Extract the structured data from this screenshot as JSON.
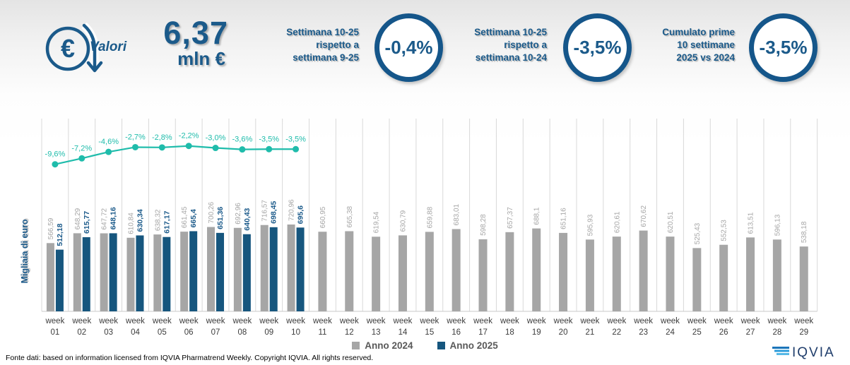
{
  "header": {
    "icon_label": "Valori",
    "total_value": "6,37",
    "total_unit": "mln €",
    "accent_color": "#1b5a8a",
    "kpis": [
      {
        "label": "Settimana 10-25\nrispetto a\nsettimana 9-25",
        "value": "-0,4%"
      },
      {
        "label": "Settimana 10-25\nrispetto a\nsettimana 10-24",
        "value": "-3,5%"
      },
      {
        "label": "Cumulato prime\n10 settimane\n2025 vs 2024",
        "value": "-3,5%"
      }
    ]
  },
  "chart_data": {
    "type": "bar",
    "title": "",
    "ylabel": "Migliaia di euro",
    "ylim": [
      0,
      1600
    ],
    "grid": "vertical-category-separators",
    "legend_position": "bottom-center",
    "category_prefix": "week",
    "categories": [
      "01",
      "02",
      "03",
      "04",
      "05",
      "06",
      "07",
      "08",
      "09",
      "10",
      "11",
      "12",
      "13",
      "14",
      "15",
      "16",
      "17",
      "18",
      "19",
      "20",
      "21",
      "22",
      "23",
      "24",
      "25",
      "26",
      "27",
      "28",
      "29"
    ],
    "series": [
      {
        "name": "Anno 2024",
        "color": "#a6a6a6",
        "label_color": "#a6a6a6",
        "values": [
          566.59,
          648.29,
          647.72,
          610.84,
          638.32,
          661.45,
          700.26,
          692.96,
          716.57,
          720.96,
          660.95,
          665.38,
          619.54,
          630.79,
          659.88,
          683.01,
          598.28,
          657.37,
          688.1,
          651.16,
          595.93,
          620.61,
          670.62,
          620.51,
          525.43,
          552.53,
          613.51,
          596.13,
          538.18
        ],
        "labels": [
          "566,59",
          "648,29",
          "647,72",
          "610,84",
          "638,32",
          "661,45",
          "700,26",
          "692,96",
          "716,57",
          "720,96",
          "660,95",
          "665,38",
          "619,54",
          "630,79",
          "659,88",
          "683,01",
          "598,28",
          "657,37",
          "688,1",
          "651,16",
          "595,93",
          "620,61",
          "670,62",
          "620,51",
          "525,43",
          "552,53",
          "613,51",
          "596,13",
          "538,18"
        ]
      },
      {
        "name": "Anno 2025",
        "color": "#16567e",
        "label_color": "#1b5a8a",
        "values": [
          512.18,
          615.77,
          648.16,
          630.34,
          617.17,
          665.4,
          651.36,
          640.43,
          698.45,
          695.6,
          null,
          null,
          null,
          null,
          null,
          null,
          null,
          null,
          null,
          null,
          null,
          null,
          null,
          null,
          null,
          null,
          null,
          null,
          null
        ],
        "labels": [
          "512,18",
          "615,77",
          "648,16",
          "630,34",
          "617,17",
          "665,4",
          "651,36",
          "640,43",
          "698,45",
          "695,6"
        ]
      }
    ],
    "line_series": {
      "color": "#1fbcab",
      "values": [
        -9.6,
        -7.2,
        -4.6,
        -2.7,
        -2.8,
        -2.2,
        -3.0,
        -3.6,
        -3.5,
        -3.5
      ],
      "labels": [
        "-9,6%",
        "-7,2%",
        "-4,6%",
        "-2,7%",
        "-2,8%",
        "-2,2%",
        "-3,0%",
        "-3,6%",
        "-3,5%",
        "-3,5%"
      ]
    }
  },
  "footer": {
    "source": "Fonte dati: based on information licensed from IQVIA Pharmatrend Weekly. Copyright IQVIA. All rights reserved.",
    "logo_text": "IQVIA"
  }
}
